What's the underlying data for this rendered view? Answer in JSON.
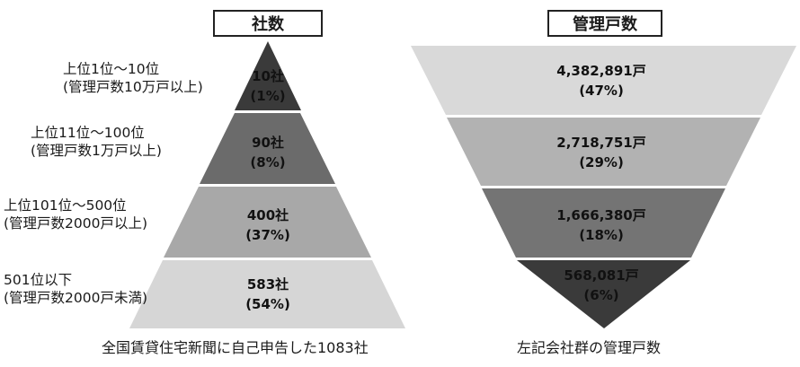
{
  "left_title": "社数",
  "right_title": "管理戸数",
  "left_caption": "全国賃貸住宅新聞に自己申告した1083社",
  "right_caption": "左記会社群の管理戸数",
  "tiers": [
    {
      "rank_label": "上位1位～10位",
      "criteria_label": "(管理戸数10万戸以上)",
      "company_count": "10社",
      "company_share": "(1%)",
      "units": "4,382,891戸",
      "units_share": "(47%)"
    },
    {
      "rank_label": "上位11位～100位",
      "criteria_label": "(管理戸数1万戸以上)",
      "company_count": "90社",
      "company_share": "(8%)",
      "units": "2,718,751戸",
      "units_share": "(29%)"
    },
    {
      "rank_label": "上位101位～500位",
      "criteria_label": "(管理戸数2000戸以上)",
      "company_count": "400社",
      "company_share": "(37%)",
      "units": "1,666,380戸",
      "units_share": "(18%)"
    },
    {
      "rank_label": "501位以下",
      "criteria_label": "(管理戸数2000戸未満)",
      "company_count": "583社",
      "company_share": "(54%)",
      "units": "568,081戸",
      "units_share": "(6%)"
    }
  ],
  "colors": {
    "tier1": "#3a3a3a",
    "tier2": "#6b6b6b",
    "tier3": "#a8a8a8",
    "tier4": "#d6d6d6",
    "inv_tier1": "#d9d9d9",
    "inv_tier2": "#b2b2b2",
    "inv_tier3": "#747474",
    "inv_tier4": "#3a3a3a"
  }
}
